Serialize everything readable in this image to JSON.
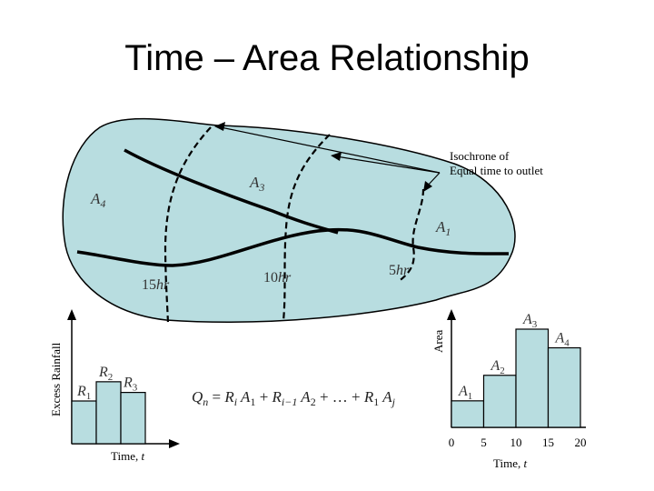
{
  "title": "Time – Area Relationship",
  "watershed": {
    "callout_line1": "Isochrone of",
    "callout_line2": "Equal time to outlet",
    "areas": [
      {
        "name": "A",
        "sub": "4"
      },
      {
        "name": "A",
        "sub": "3"
      },
      {
        "name": "A",
        "sub": "1"
      }
    ],
    "isochrones": [
      {
        "num": "15",
        "unit": "hr"
      },
      {
        "num": "10",
        "unit": "hr"
      },
      {
        "num": "5",
        "unit": "hr"
      }
    ],
    "fill_color": "#b8dde0"
  },
  "rainfall_chart": {
    "ylabel": "Excess Rainfall",
    "xlabel_text": "Time, ",
    "xlabel_var": "t",
    "bars": [
      {
        "name": "R",
        "sub": "1",
        "value": 1.0
      },
      {
        "name": "R",
        "sub": "2",
        "value": 1.45
      },
      {
        "name": "R",
        "sub": "3",
        "value": 1.2
      }
    ]
  },
  "area_chart": {
    "ylabel": "Area",
    "xlabel_text": "Time, ",
    "xlabel_var": "t",
    "ticks": [
      "0",
      "5",
      "10",
      "15",
      "20"
    ],
    "bars": [
      {
        "name": "A",
        "sub": "1",
        "value": 0.27
      },
      {
        "name": "A",
        "sub": "2",
        "value": 0.53
      },
      {
        "name": "A",
        "sub": "3",
        "value": 1.0
      },
      {
        "name": "A",
        "sub": "4",
        "value": 0.81
      }
    ]
  },
  "equation": {
    "lhs": "Q",
    "lhs_sub": "n",
    "eq": " = ",
    "t1": "R",
    "t1s": "i",
    "t1a": " A",
    "t1as": "1",
    "plus1": " + ",
    "t2": "R",
    "t2s": "i−1",
    "t2a": " A",
    "t2as": "2",
    "plus2": " + … + ",
    "t3": "R",
    "t3s": "1",
    "t3a": " A",
    "t3as": "j"
  }
}
